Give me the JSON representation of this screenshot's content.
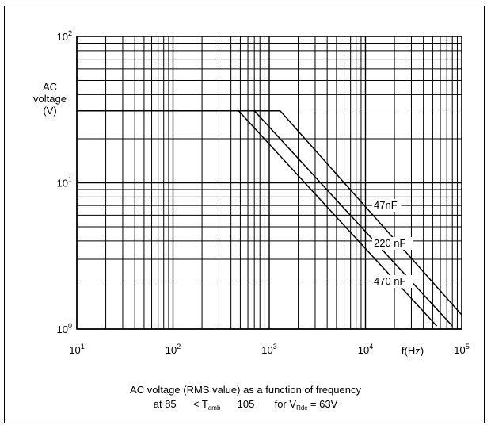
{
  "chart_data": {
    "type": "line",
    "xscale": "log",
    "yscale": "log",
    "xlim": [
      10,
      100000
    ],
    "ylim": [
      1,
      100
    ],
    "grid": true,
    "xlabel": "f(Hz)",
    "ylabel_lines": [
      "AC",
      "voltage",
      "(V)"
    ],
    "x_ticks": [
      {
        "base": "10",
        "exp": "1"
      },
      {
        "base": "10",
        "exp": "2"
      },
      {
        "base": "10",
        "exp": "3"
      },
      {
        "base": "10",
        "exp": "4"
      },
      {
        "base": "10",
        "exp": "5"
      }
    ],
    "y_ticks": [
      {
        "base": "10",
        "exp": "0"
      },
      {
        "base": "10",
        "exp": "1"
      },
      {
        "base": "10",
        "exp": "2"
      }
    ],
    "series": [
      {
        "name": "47nF",
        "x": [
          10,
          1300,
          100000
        ],
        "y": [
          31,
          31,
          1.25
        ]
      },
      {
        "name": "220 nF",
        "x": [
          10,
          700,
          80000
        ],
        "y": [
          31,
          31,
          1.05
        ]
      },
      {
        "name": "470 nF",
        "x": [
          10,
          480,
          55000
        ],
        "y": [
          31,
          31,
          1.05
        ]
      }
    ],
    "caption_line1": "AC voltage (RMS value) as a function of frequency",
    "caption_line2": {
      "at": "at 85",
      "lt": "< T",
      "tamb_sub": "amb",
      "max": "105",
      "for": "for V",
      "vrdc_sub": "Rdc",
      "value": "= 63V"
    }
  }
}
